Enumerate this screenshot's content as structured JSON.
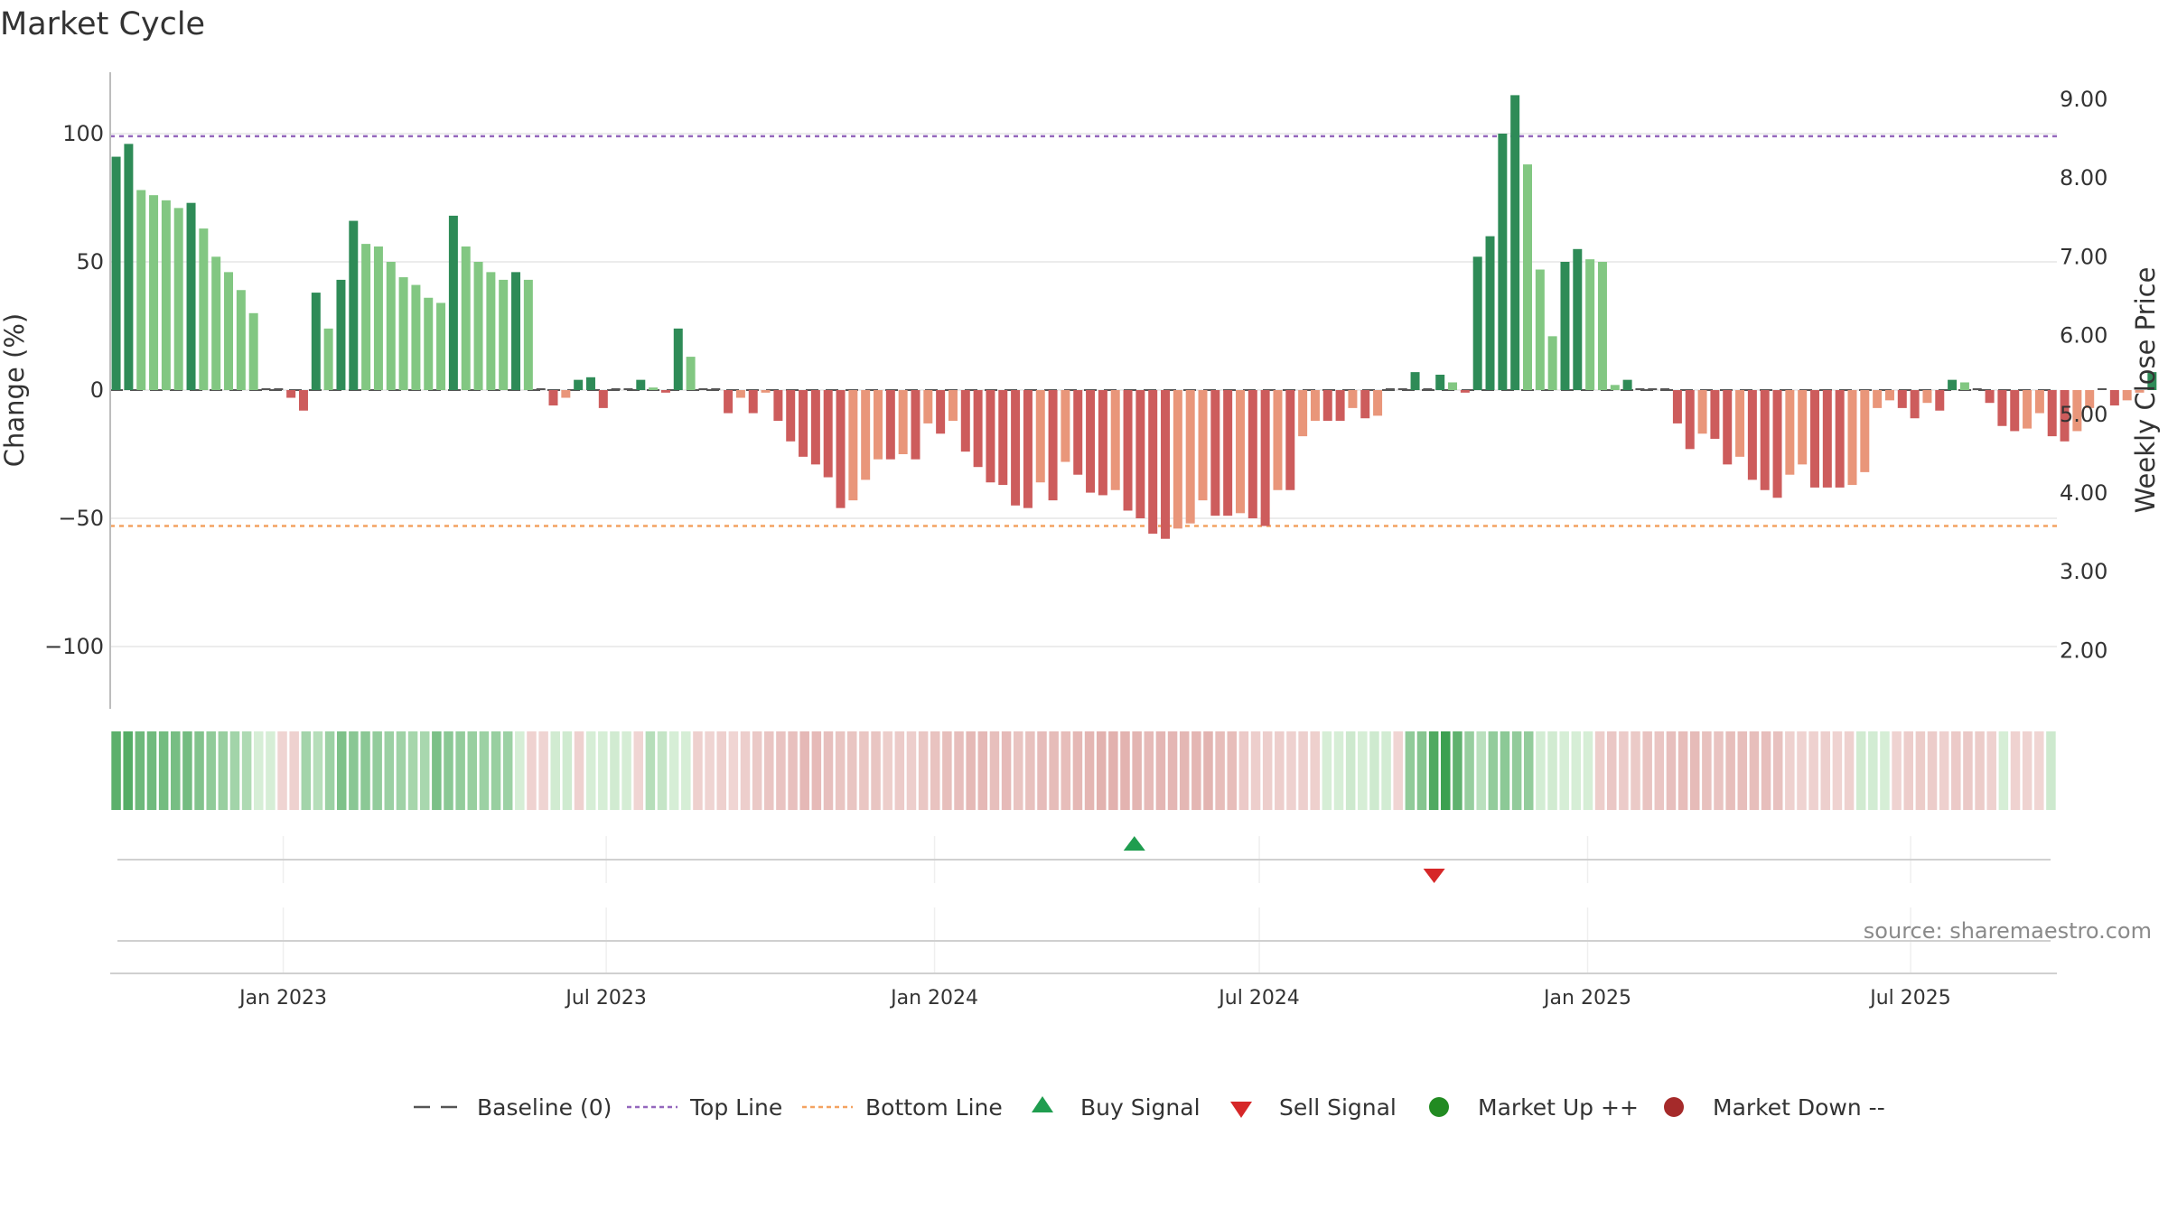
{
  "chart_data": {
    "type": "bar",
    "title": "Market Cycle",
    "ylabel": "Change (%)",
    "y2label": "Weekly Close Price",
    "ylim": [
      -125,
      125
    ],
    "y2lim": [
      1.2,
      9.4
    ],
    "yticks": [
      100,
      50,
      0,
      -50,
      -100
    ],
    "ytick_labels": [
      "100",
      "50",
      "0",
      "−50",
      "−100"
    ],
    "y2ticks": [
      9,
      8,
      7,
      6,
      5,
      4,
      3,
      2
    ],
    "y2tick_labels": [
      "9.00",
      "8.00",
      "7.00",
      "6.00",
      "5.00",
      "4.00",
      "3.00",
      "2.00"
    ],
    "x_start": "2022-09-26",
    "x_end": "2025-09-21",
    "xticks": [
      {
        "date": "2023-01-01",
        "label": "Jan 2023"
      },
      {
        "date": "2023-07-01",
        "label": "Jul 2023"
      },
      {
        "date": "2024-01-01",
        "label": "Jan 2024"
      },
      {
        "date": "2024-07-01",
        "label": "Jul 2024"
      },
      {
        "date": "2025-01-01",
        "label": "Jan 2025"
      },
      {
        "date": "2025-07-01",
        "label": "Jul 2025"
      }
    ],
    "reference_lines": [
      {
        "name": "Baseline (0)",
        "value": 0,
        "color": "#555555",
        "style": "dash"
      },
      {
        "name": "Top Line",
        "value": 99,
        "color": "#9467bd",
        "style": "dot"
      },
      {
        "name": "Bottom Line",
        "value": -53,
        "color": "#f4a261",
        "style": "dot"
      }
    ],
    "series": [
      {
        "name": "Change (%)",
        "start": "2022-09-26",
        "interval_days": 7,
        "values": [
          91,
          96,
          78,
          76,
          74,
          71,
          73,
          63,
          52,
          46,
          39,
          30,
          0,
          0,
          -3,
          -8,
          38,
          24,
          43,
          66,
          57,
          56,
          50,
          44,
          41,
          36,
          34,
          68,
          56,
          50,
          46,
          43,
          46,
          43,
          0,
          -6,
          -3,
          4,
          5,
          -7,
          0,
          0,
          4,
          1,
          -1,
          24,
          13,
          0,
          0,
          -9,
          -3,
          -9,
          -1,
          -12,
          -20,
          -26,
          -29,
          -34,
          -46,
          -43,
          -35,
          -27,
          -27,
          -25,
          -27,
          -13,
          -17,
          -12,
          -24,
          -30,
          -36,
          -37,
          -45,
          -46,
          -36,
          -43,
          -28,
          -33,
          -40,
          -41,
          -39,
          -47,
          -50,
          -56,
          -58,
          -54,
          -52,
          -43,
          -49,
          -49,
          -48,
          -50,
          -53,
          -39,
          -39,
          -18,
          -12,
          -12,
          -12,
          -7,
          -11,
          -10,
          0,
          0,
          7,
          0,
          6,
          3,
          -1,
          52,
          60,
          100,
          115,
          88,
          47,
          21,
          50,
          55,
          51,
          50,
          2,
          4,
          0,
          0,
          0,
          -13,
          -23,
          -17,
          -19,
          -29,
          -26,
          -35,
          -39,
          -42,
          -33,
          -29,
          -38,
          -38,
          -38,
          -37,
          -32,
          -7,
          -4,
          -7,
          -11,
          -5,
          -8,
          4,
          3,
          0,
          -5,
          -14,
          -16,
          -15,
          -9,
          -18,
          -20,
          -16,
          -7,
          0,
          -6,
          -4,
          -1,
          7
        ]
      }
    ],
    "colors": {
      "up_strong": "#2e8b57",
      "up_weak": "#82c782",
      "down_strong": "#cd5c5c",
      "down_weak": "#e9967a"
    },
    "heat_strip": {
      "type": "heatmap",
      "values_source": "series.0.values"
    },
    "signals": [
      {
        "type": "buy",
        "date": "2024-04-22",
        "color": "#1f9d4f"
      },
      {
        "type": "sell",
        "date": "2024-10-07",
        "color": "#d62728"
      }
    ],
    "legend": {
      "position": "bottom",
      "items": [
        {
          "label": "Baseline (0)",
          "symbol": "dash-line",
          "color": "#555555"
        },
        {
          "label": "Top Line",
          "symbol": "dot-line",
          "color": "#9467bd"
        },
        {
          "label": "Bottom Line",
          "symbol": "dot-line",
          "color": "#f4a261"
        },
        {
          "label": "Buy Signal",
          "symbol": "triangle-up",
          "color": "#1f9d4f"
        },
        {
          "label": "Sell Signal",
          "symbol": "triangle-down",
          "color": "#d62728"
        },
        {
          "label": "Market Up ++",
          "symbol": "circle",
          "color": "#228b22"
        },
        {
          "label": "Market Down --",
          "symbol": "circle",
          "color": "#a52a2a"
        }
      ]
    },
    "annotation": "source: sharemaestro.com",
    "grid": true
  }
}
